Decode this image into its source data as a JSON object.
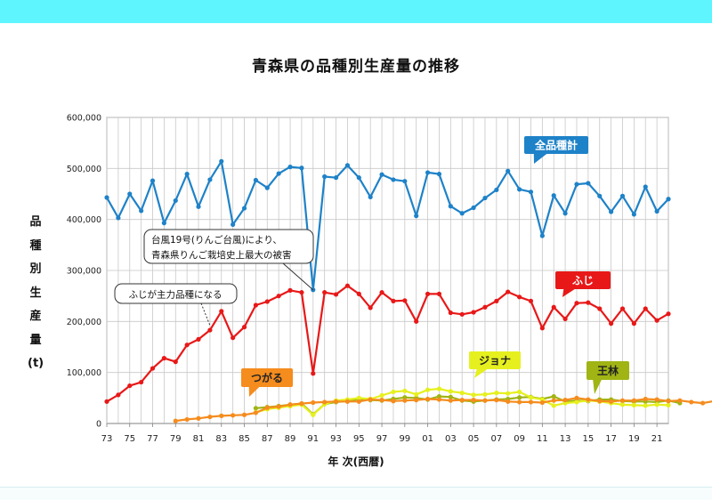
{
  "page": {
    "title": "青森県の品種別生産量の推移",
    "ylabel": "品種別生産量(t)",
    "xlabel": "年 次(西暦)"
  },
  "colors": {
    "all": "#1e82c8",
    "fuji": "#e81818",
    "tsugaru": "#f58c1e",
    "jonagold": "#e6f01e",
    "ourin": "#a0b414",
    "grid": "#c8c8c8",
    "top_band": "#5ff5ff"
  },
  "chart_data": {
    "type": "line",
    "title": "青森県の品種別生産量の推移",
    "xlabel": "年 次(西暦)",
    "ylabel": "品種別生産量(t)",
    "grid": true,
    "ylim": [
      0,
      600000
    ],
    "xlim": [
      1973,
      2022
    ],
    "y_ticks": [
      "0",
      "100,000",
      "200,000",
      "300,000",
      "400,000",
      "500,000",
      "600,000"
    ],
    "x_ticks": [
      "73",
      "75",
      "77",
      "79",
      "81",
      "83",
      "85",
      "87",
      "89",
      "91",
      "93",
      "95",
      "97",
      "99",
      "01",
      "03",
      "05",
      "07",
      "09",
      "11",
      "13",
      "15",
      "17",
      "19",
      "21"
    ],
    "series": [
      {
        "name": "全品種計",
        "color_key": "all",
        "start": 1973,
        "values": [
          443000,
          403000,
          450000,
          417000,
          476000,
          393000,
          437000,
          489000,
          425000,
          478000,
          514000,
          390000,
          422000,
          477000,
          462000,
          490000,
          503000,
          501000,
          262000,
          484000,
          482000,
          506000,
          482000,
          444000,
          488000,
          478000,
          475000,
          407000,
          492000,
          489000,
          426000,
          412000,
          423000,
          442000,
          458000,
          495000,
          459000,
          454000,
          368000,
          447000,
          412000,
          469000,
          471000,
          446000,
          415000,
          446000,
          410000,
          464000,
          416000,
          440000
        ]
      },
      {
        "name": "ふじ",
        "color_key": "fuji",
        "start": 1973,
        "values": [
          43000,
          56000,
          74000,
          81000,
          108000,
          128000,
          121000,
          154000,
          165000,
          183000,
          220000,
          168000,
          189000,
          232000,
          239000,
          250000,
          261000,
          257000,
          98000,
          257000,
          253000,
          270000,
          254000,
          227000,
          257000,
          240000,
          241000,
          200000,
          254000,
          254000,
          217000,
          214000,
          218000,
          228000,
          240000,
          258000,
          248000,
          240000,
          187000,
          228000,
          205000,
          236000,
          237000,
          225000,
          196000,
          225000,
          196000,
          225000,
          202000,
          215000
        ]
      },
      {
        "name": "つがる",
        "color_key": "tsugaru",
        "start": 1979,
        "values": [
          5000,
          8000,
          10000,
          13000,
          15000,
          16000,
          17000,
          21000,
          31000,
          33000,
          37000,
          39000,
          41000,
          42000,
          43000,
          43000,
          43000,
          47000,
          46000,
          44000,
          45000,
          46000,
          48000,
          47000,
          45000,
          46000,
          46000,
          45000,
          46000,
          43000,
          42000,
          42000,
          41000,
          45000,
          46000,
          50000,
          47000,
          44000,
          43000,
          45000,
          45000,
          48000,
          47000,
          44000,
          45000,
          42000,
          40000,
          44000,
          43000,
          39000
        ]
      },
      {
        "name": "ジョナ",
        "color_key": "jonagold",
        "start": 1986,
        "values": [
          22000,
          28000,
          31000,
          34000,
          37000,
          17000,
          38000,
          45000,
          47000,
          50000,
          48000,
          55000,
          62000,
          64000,
          57000,
          66000,
          68000,
          63000,
          60000,
          56000,
          57000,
          60000,
          59000,
          62000,
          51000,
          47000,
          35000,
          40000,
          42000,
          45000,
          43000,
          40000,
          37000,
          36000,
          35000,
          37000,
          36000
        ]
      },
      {
        "name": "王林",
        "color_key": "ourin",
        "start": 1986,
        "values": [
          30000,
          32000,
          34000,
          37000,
          39000,
          18000,
          38000,
          42000,
          44000,
          48000,
          46000,
          45000,
          48000,
          51000,
          50000,
          47000,
          53000,
          52000,
          45000,
          43000,
          45000,
          47000,
          48000,
          51000,
          52000,
          48000,
          53000,
          43000,
          45000,
          44000,
          47000,
          47000,
          44000,
          43000,
          43000,
          42000,
          45000,
          40000
        ]
      }
    ]
  },
  "labels": {
    "all": "全品種計",
    "fuji": "ふじ",
    "tsugaru": "つがる",
    "jonagold": "ジョナ",
    "ourin": "王林"
  },
  "annotations": {
    "typhoon_line1": "台風19号(りんご台風)により、",
    "typhoon_line2": "青森県りんご栽培史上最大の被害",
    "fuji_main": "ふじが主力品種になる"
  }
}
